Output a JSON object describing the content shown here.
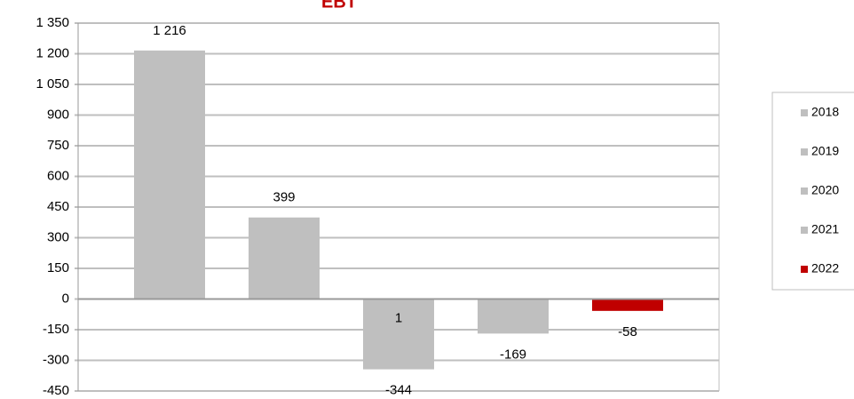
{
  "chart_data": {
    "type": "bar",
    "title": "EBT",
    "categories": [
      null
    ],
    "series": [
      {
        "name": "2018",
        "color": "#bfbfbf",
        "values": [
          1216
        ],
        "value_labels": [
          "1 216"
        ]
      },
      {
        "name": "2019",
        "color": "#bfbfbf",
        "values": [
          399
        ]
      },
      {
        "name": "2020",
        "color": "#bfbfbf",
        "values": [
          -344
        ]
      },
      {
        "name": "2021",
        "color": "#bfbfbf",
        "values": [
          -169
        ]
      },
      {
        "name": "2022",
        "color": "#c00000",
        "values": [
          -58
        ]
      }
    ],
    "annotation": "1",
    "ylim": [
      -450,
      1350
    ],
    "yticks": [
      -450,
      -300,
      -150,
      0,
      150,
      300,
      450,
      600,
      750,
      900,
      {
        "value": 1050,
        "label": "1 050"
      },
      {
        "value": 1200,
        "label": "1 200"
      },
      {
        "value": 1350,
        "label": "1 350"
      }
    ],
    "grid": true,
    "legend": "right"
  }
}
